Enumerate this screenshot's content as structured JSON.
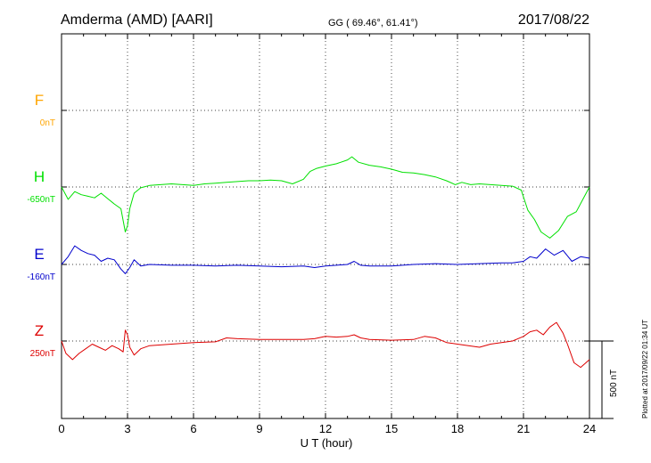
{
  "header": {
    "station": "Amderma (AMD)  [AARI]",
    "coords": "GG ( 69.46°,  61.41°)",
    "date": "2017/08/22"
  },
  "chart_data": {
    "type": "line",
    "xlabel": "U T (hour)",
    "xlim": [
      0,
      24
    ],
    "x_ticks": [
      "0",
      "3",
      "6",
      "9",
      "12",
      "15",
      "18",
      "21",
      "24"
    ],
    "scale_label": "500 nT",
    "plotted_note": "Plotted at 2017/09/22 01:34 UT",
    "grid": true,
    "colors": {
      "F": "#ffa500",
      "H": "#00e000",
      "E": "#0000cc",
      "Z": "#dd0000"
    },
    "channels": [
      {
        "name": "F",
        "baseline": "0nT",
        "color": "#ffa500"
      },
      {
        "name": "H",
        "baseline": "-650nT",
        "color": "#00e000"
      },
      {
        "name": "E",
        "baseline": "-160nT",
        "color": "#0000cc"
      },
      {
        "name": "Z",
        "baseline": "250nT",
        "color": "#dd0000"
      }
    ],
    "series": [
      {
        "name": "H",
        "x": [
          0,
          0.3,
          0.6,
          0.9,
          1.2,
          1.5,
          1.8,
          2.1,
          2.4,
          2.7,
          2.9,
          3.0,
          3.1,
          3.3,
          3.6,
          4,
          4.5,
          5,
          5.5,
          6,
          6.5,
          7,
          7.5,
          8,
          8.5,
          9,
          9.5,
          10,
          10.5,
          11,
          11.3,
          11.6,
          12,
          12.5,
          13,
          13.2,
          13.5,
          14,
          14.5,
          15,
          15.5,
          16,
          16.5,
          17,
          17.5,
          17.9,
          18.2,
          18.6,
          19,
          19.5,
          20,
          20.5,
          20.9,
          21.2,
          21.5,
          21.8,
          22.2,
          22.6,
          23,
          23.4,
          23.7,
          24
        ],
        "values": [
          0,
          -80,
          -30,
          -50,
          -60,
          -70,
          -40,
          -75,
          -110,
          -140,
          -290,
          -250,
          -140,
          -40,
          -5,
          10,
          15,
          20,
          15,
          10,
          20,
          25,
          30,
          35,
          40,
          40,
          45,
          40,
          20,
          50,
          100,
          120,
          135,
          150,
          175,
          195,
          160,
          140,
          130,
          115,
          95,
          90,
          80,
          65,
          40,
          15,
          30,
          15,
          20,
          15,
          10,
          5,
          -20,
          -150,
          -210,
          -290,
          -330,
          -280,
          -190,
          -160,
          -80,
          0
        ]
      },
      {
        "name": "E",
        "x": [
          0,
          0.3,
          0.6,
          0.9,
          1.2,
          1.5,
          1.8,
          2.1,
          2.4,
          2.7,
          2.9,
          3.1,
          3.3,
          3.6,
          4,
          5,
          6,
          7,
          8,
          9,
          10,
          11,
          11.5,
          12,
          12.5,
          13,
          13.3,
          13.6,
          14,
          15,
          16,
          17,
          18,
          19,
          20,
          20.5,
          21,
          21.3,
          21.6,
          22,
          22.4,
          22.8,
          23.2,
          23.6,
          24
        ],
        "values": [
          0,
          50,
          120,
          90,
          70,
          60,
          20,
          40,
          30,
          -30,
          -60,
          -20,
          30,
          -10,
          0,
          -5,
          -5,
          -10,
          -5,
          -10,
          -15,
          -10,
          -20,
          -10,
          -5,
          0,
          20,
          -5,
          -10,
          -10,
          0,
          5,
          0,
          5,
          10,
          10,
          20,
          50,
          40,
          100,
          60,
          90,
          20,
          50,
          40
        ]
      },
      {
        "name": "Z",
        "x": [
          0,
          0.2,
          0.5,
          0.8,
          1.1,
          1.4,
          1.7,
          2.0,
          2.3,
          2.6,
          2.8,
          2.9,
          3.0,
          3.1,
          3.3,
          3.6,
          4,
          5,
          6,
          7,
          7.5,
          8,
          9,
          10,
          11,
          11.5,
          12,
          12.5,
          13,
          13.3,
          13.6,
          14,
          15,
          16,
          16.5,
          17,
          17.5,
          18,
          18.5,
          19,
          19.5,
          20,
          20.5,
          21,
          21.3,
          21.6,
          21.9,
          22.2,
          22.5,
          22.8,
          23,
          23.3,
          23.6,
          24
        ],
        "values": [
          0,
          -80,
          -120,
          -80,
          -50,
          -20,
          -40,
          -60,
          -30,
          -50,
          -70,
          70,
          40,
          -40,
          -90,
          -50,
          -30,
          -20,
          -10,
          -5,
          20,
          15,
          10,
          10,
          10,
          15,
          30,
          25,
          30,
          40,
          20,
          10,
          5,
          10,
          30,
          20,
          -10,
          -20,
          -30,
          -40,
          -20,
          -10,
          0,
          30,
          60,
          70,
          40,
          90,
          120,
          50,
          -20,
          -140,
          -170,
          -120
        ]
      }
    ]
  }
}
